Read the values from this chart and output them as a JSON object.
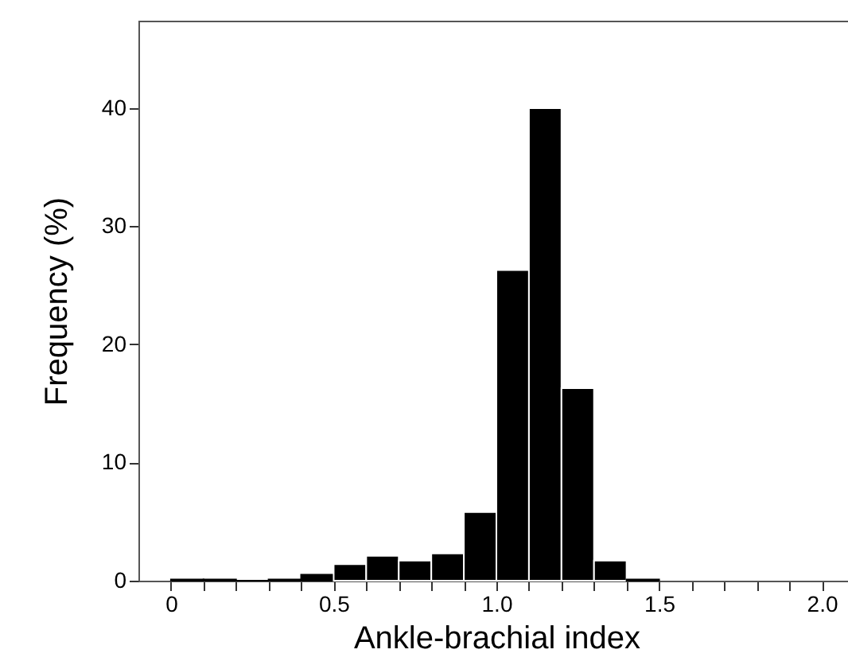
{
  "chart_data": {
    "type": "histogram",
    "xlabel": "Ankle-brachial index",
    "ylabel": "Frequency (%)",
    "bins": [
      0,
      0.1,
      0.2,
      0.3,
      0.4,
      0.5,
      0.6,
      0.7,
      0.8,
      0.9,
      1.0,
      1.1,
      1.2,
      1.3,
      1.4,
      1.5
    ],
    "values": [
      0.1,
      0.1,
      0,
      0.1,
      0.5,
      1.4,
      2.1,
      1.7,
      2.3,
      5.8,
      26.3,
      40,
      16.3,
      1.7,
      0.1
    ],
    "color": "#000000",
    "xlim": [
      -0.1,
      2.1
    ],
    "ylim": [
      0,
      47.4
    ],
    "xticks": [
      0,
      {
        "value": 0.1,
        "label": null
      },
      {
        "value": 0.2,
        "label": null
      },
      {
        "value": 0.3,
        "label": null
      },
      {
        "value": 0.4,
        "label": null
      },
      0.5,
      {
        "value": 0.6,
        "label": null
      },
      {
        "value": 0.7,
        "label": null
      },
      {
        "value": 0.8,
        "label": null
      },
      {
        "value": 0.9,
        "label": null
      },
      {
        "value": 1,
        "label": "1.0"
      },
      {
        "value": 1.1,
        "label": null
      },
      {
        "value": 1.2,
        "label": null
      },
      {
        "value": 1.3,
        "label": null
      },
      {
        "value": 1.4,
        "label": null
      },
      1.5,
      {
        "value": 1.6,
        "label": null
      },
      {
        "value": 1.7,
        "label": null
      },
      {
        "value": 1.8,
        "label": null
      },
      {
        "value": 1.9,
        "label": null
      },
      {
        "value": 2,
        "label": "2.0"
      }
    ],
    "yticks": [
      0,
      10,
      20,
      30,
      40
    ]
  }
}
